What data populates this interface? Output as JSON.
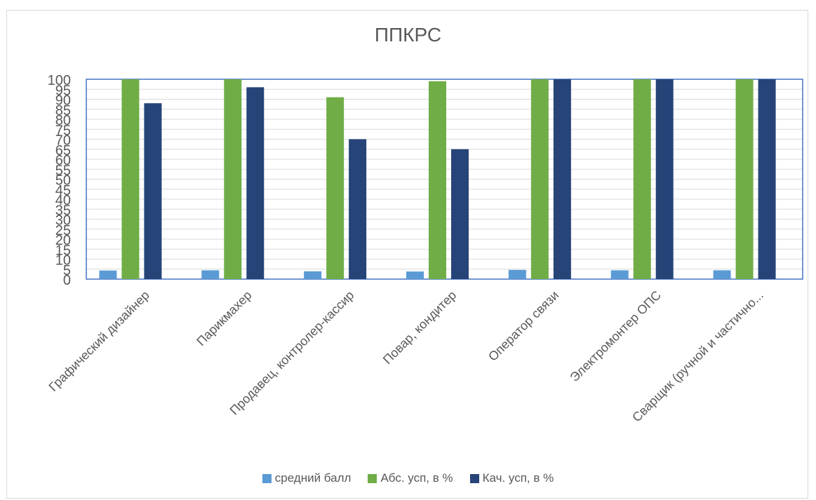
{
  "chart_data": {
    "type": "bar",
    "title": "ППКРС",
    "categories": [
      "Графический дизайнер",
      "Парикмахер",
      "Продавец, контролер-кассир",
      "Повар, кондитер",
      "Оператор связи",
      "Электромонтер ОПС",
      "Сварщик (ручной и частично..."
    ],
    "series": [
      {
        "name": "средний балл",
        "color": "#5b9bd5",
        "values": [
          4.3,
          4.4,
          3.9,
          3.8,
          4.6,
          4.4,
          4.4
        ]
      },
      {
        "name": "Абс. усп, в %",
        "color": "#70ad47",
        "values": [
          100,
          100,
          91,
          99,
          100,
          100,
          100
        ]
      },
      {
        "name": "Кач. усп, в %",
        "color": "#264478",
        "values": [
          88,
          96,
          70,
          65,
          100,
          100,
          100
        ]
      }
    ],
    "yticks": [
      0,
      5,
      10,
      15,
      20,
      25,
      30,
      35,
      40,
      45,
      50,
      55,
      60,
      65,
      70,
      75,
      80,
      85,
      90,
      95,
      100
    ],
    "ylim": [
      0,
      100
    ],
    "grid": true,
    "legend_position": "bottom"
  }
}
